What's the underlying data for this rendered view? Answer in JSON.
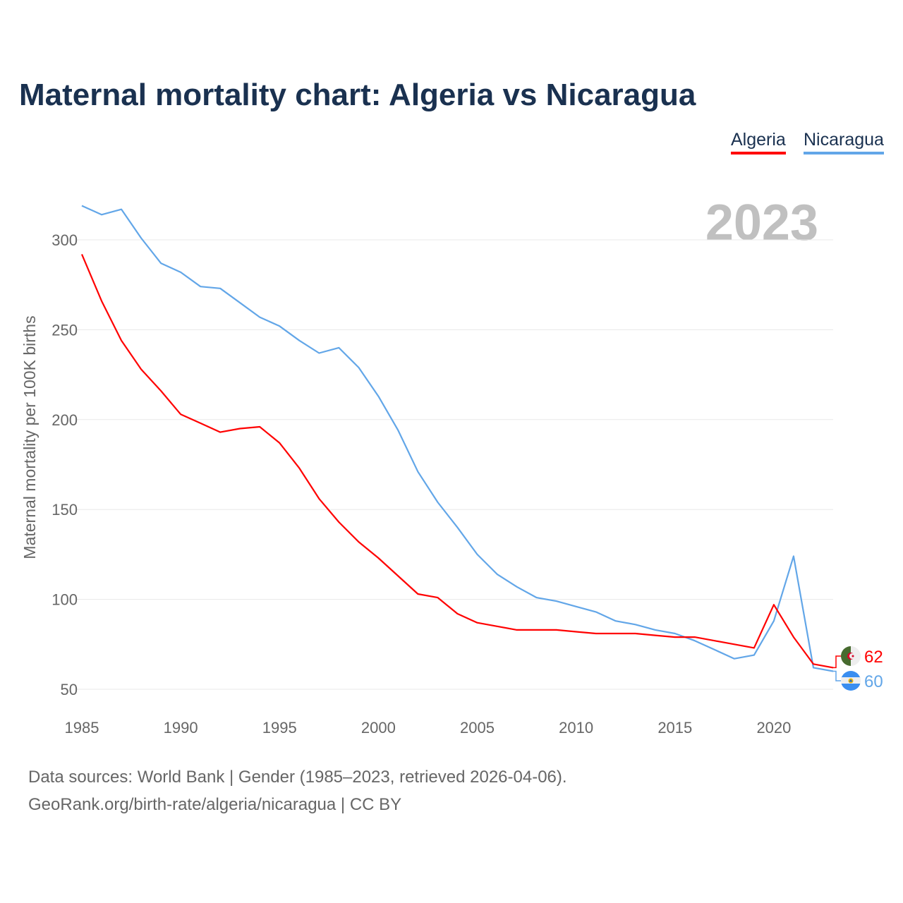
{
  "chart_data": {
    "type": "line",
    "title": "Maternal mortality chart: Algeria vs Nicaragua",
    "ylabel": "Maternal mortality per 100K births",
    "xlabel": "",
    "year_label": "2023",
    "xlim": [
      1985,
      2023
    ],
    "ylim": [
      50,
      300
    ],
    "x_ticks": [
      1985,
      1990,
      1995,
      2000,
      2005,
      2010,
      2015,
      2020
    ],
    "y_ticks": [
      50,
      100,
      150,
      200,
      250,
      300
    ],
    "grid": true,
    "legend_position": "top-right",
    "x": [
      1985,
      1986,
      1987,
      1988,
      1989,
      1990,
      1991,
      1992,
      1993,
      1994,
      1995,
      1996,
      1997,
      1998,
      1999,
      2000,
      2001,
      2002,
      2003,
      2004,
      2005,
      2006,
      2007,
      2008,
      2009,
      2010,
      2011,
      2012,
      2013,
      2014,
      2015,
      2016,
      2017,
      2018,
      2019,
      2020,
      2021,
      2022,
      2023
    ],
    "series": [
      {
        "name": "Algeria",
        "color": "#ff0000",
        "end_label": "62",
        "values": [
          292,
          266,
          244,
          228,
          216,
          203,
          198,
          193,
          195,
          196,
          187,
          173,
          156,
          143,
          132,
          123,
          113,
          103,
          101,
          92,
          87,
          85,
          83,
          83,
          83,
          82,
          81,
          81,
          81,
          80,
          79,
          79,
          77,
          75,
          73,
          97,
          79,
          64,
          62
        ]
      },
      {
        "name": "Nicaragua",
        "color": "#62a6e8",
        "end_label": "60",
        "values": [
          319,
          314,
          317,
          301,
          287,
          282,
          274,
          273,
          265,
          257,
          252,
          244,
          237,
          240,
          229,
          213,
          194,
          171,
          154,
          140,
          125,
          114,
          107,
          101,
          99,
          96,
          93,
          88,
          86,
          83,
          81,
          77,
          72,
          67,
          69,
          88,
          124,
          62,
          60
        ]
      }
    ]
  },
  "footer": {
    "line1": "Data sources: World Bank | Gender (1985–2023, retrieved 2026-04-06).",
    "line2": "GeoRank.org/birth-rate/algeria/nicaragua | CC BY"
  }
}
